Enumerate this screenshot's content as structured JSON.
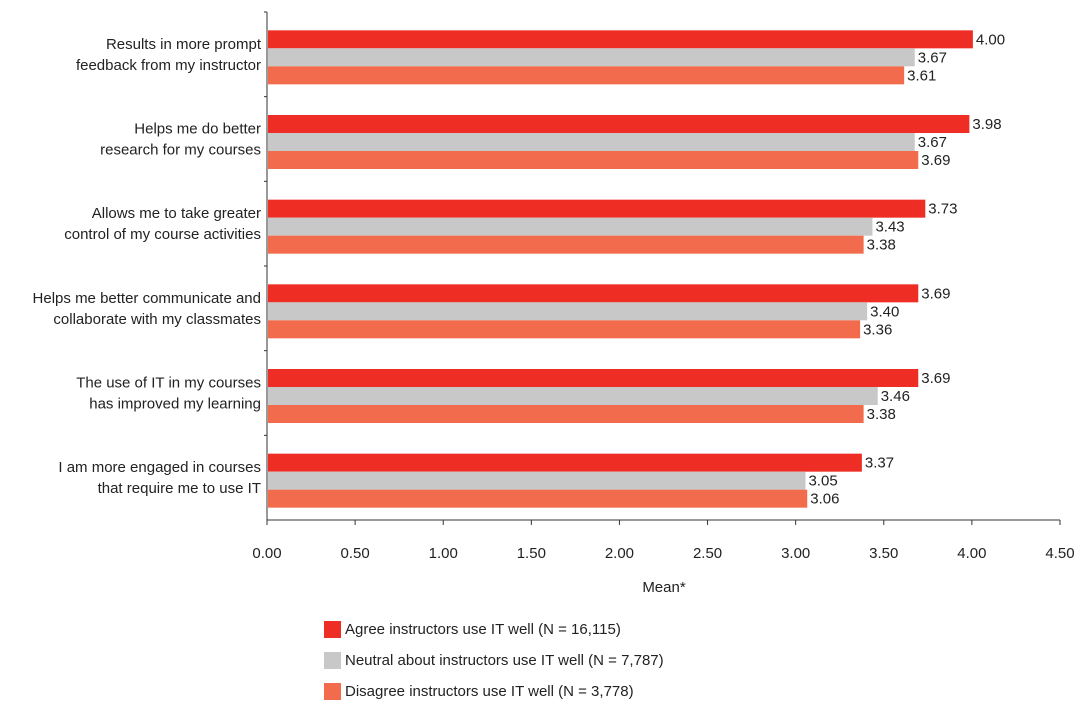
{
  "chart_data": {
    "type": "bar",
    "orientation": "horizontal",
    "categories": [
      [
        "Results in more prompt",
        "feedback from my instructor"
      ],
      [
        "Helps me do better",
        "research for my courses"
      ],
      [
        "Allows me to take greater",
        "control of my course activities"
      ],
      [
        "Helps me better communicate and",
        "collaborate with my classmates"
      ],
      [
        "The use of IT in my courses",
        "has improved my learning"
      ],
      [
        "I am more engaged in courses",
        "that require me to use IT"
      ]
    ],
    "series": [
      {
        "name": "Agree instructors use IT well (N = 16,115)",
        "color": "#ee2d24",
        "values": [
          4.0,
          3.98,
          3.73,
          3.69,
          3.69,
          3.37
        ],
        "labels": [
          "4.00",
          "3.98",
          "3.73",
          "3.69",
          "3.69",
          "3.37"
        ]
      },
      {
        "name": "Neutral about instructors use IT well (N = 7,787)",
        "color": "#c8c8c8",
        "values": [
          3.67,
          3.67,
          3.43,
          3.4,
          3.46,
          3.05
        ],
        "labels": [
          "3.67",
          "3.67",
          "3.43",
          "3.40",
          "3.46",
          "3.05"
        ]
      },
      {
        "name": "Disagree instructors use IT well (N = 3,778)",
        "color": "#f26b4c",
        "values": [
          3.61,
          3.69,
          3.38,
          3.36,
          3.38,
          3.06
        ],
        "labels": [
          "3.61",
          "3.69",
          "3.38",
          "3.36",
          "3.38",
          "3.06"
        ]
      }
    ],
    "xlabel": "Mean*",
    "xlim": [
      0,
      4.5
    ],
    "xticks": [
      "0.00",
      "0.50",
      "1.00",
      "1.50",
      "2.00",
      "2.50",
      "3.00",
      "3.50",
      "4.00",
      "4.50"
    ],
    "grid": false,
    "legend_position": "bottom-center"
  }
}
